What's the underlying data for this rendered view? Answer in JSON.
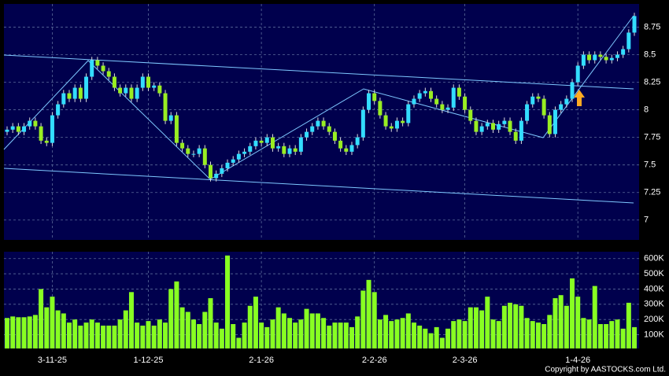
{
  "chart_data": [
    {
      "type": "candlestick",
      "up_color": "#33ddff",
      "down_color": "#99ee22",
      "open": [
        7.8,
        7.82,
        7.85,
        7.8,
        7.85,
        7.9,
        7.85,
        7.72,
        7.7,
        7.95,
        8.05,
        8.15,
        8.1,
        8.2,
        8.1,
        8.3,
        8.45,
        8.4,
        8.35,
        8.3,
        8.2,
        8.15,
        8.2,
        8.1,
        8.2,
        8.3,
        8.2,
        8.22,
        8.15,
        7.9,
        7.95,
        7.7,
        7.65,
        7.6,
        7.6,
        7.65,
        7.5,
        7.38,
        7.42,
        7.47,
        7.52,
        7.55,
        7.6,
        7.62,
        7.67,
        7.72,
        7.7,
        7.75,
        7.65,
        7.67,
        7.6,
        7.65,
        7.62,
        7.75,
        7.8,
        7.85,
        7.9,
        7.85,
        7.8,
        7.72,
        7.65,
        7.62,
        7.68,
        7.75,
        8.0,
        8.15,
        8.08,
        7.95,
        7.85,
        7.83,
        7.9,
        7.88,
        8.05,
        8.1,
        8.15,
        8.17,
        8.1,
        8.05,
        8.0,
        8.02,
        8.2,
        8.12,
        8.0,
        7.9,
        7.8,
        7.85,
        7.88,
        7.82,
        7.87,
        7.9,
        7.8,
        7.72,
        7.9,
        8.05,
        8.12,
        8.1,
        7.95,
        7.78,
        8.0,
        8.05,
        8.1,
        8.25,
        8.4,
        8.5,
        8.45,
        8.5,
        8.48,
        8.45,
        8.47,
        8.5,
        8.55,
        8.7
      ],
      "high": [
        7.85,
        7.88,
        7.88,
        7.88,
        7.93,
        7.93,
        7.88,
        7.75,
        7.98,
        8.08,
        8.18,
        8.18,
        8.23,
        8.23,
        8.33,
        8.48,
        8.48,
        8.43,
        8.38,
        8.33,
        8.23,
        8.23,
        8.23,
        8.23,
        8.33,
        8.33,
        8.25,
        8.25,
        8.18,
        7.98,
        7.98,
        7.73,
        7.68,
        7.63,
        7.68,
        7.68,
        7.53,
        7.45,
        7.5,
        7.55,
        7.58,
        7.63,
        7.65,
        7.7,
        7.75,
        7.75,
        7.78,
        7.78,
        7.7,
        7.7,
        7.68,
        7.68,
        7.78,
        7.83,
        7.88,
        7.93,
        7.93,
        7.88,
        7.83,
        7.75,
        7.68,
        7.71,
        7.78,
        8.03,
        8.18,
        8.18,
        8.11,
        7.98,
        7.88,
        7.93,
        7.93,
        8.08,
        8.13,
        8.18,
        8.2,
        8.2,
        8.13,
        8.08,
        8.05,
        8.23,
        8.23,
        8.15,
        8.03,
        7.93,
        7.88,
        7.91,
        7.91,
        7.9,
        7.93,
        7.93,
        7.83,
        7.93,
        8.08,
        8.15,
        8.15,
        8.13,
        7.98,
        8.03,
        8.08,
        8.13,
        8.28,
        8.43,
        8.53,
        8.53,
        8.53,
        8.53,
        8.51,
        8.5,
        8.53,
        8.58,
        8.73,
        8.88
      ],
      "low": [
        7.77,
        7.79,
        7.77,
        7.77,
        7.82,
        7.82,
        7.69,
        7.67,
        7.67,
        7.92,
        8.02,
        8.07,
        8.07,
        8.07,
        8.07,
        8.27,
        8.37,
        8.32,
        8.27,
        8.17,
        8.12,
        8.12,
        8.07,
        8.07,
        8.17,
        8.17,
        8.17,
        8.12,
        7.87,
        7.87,
        7.67,
        7.62,
        7.57,
        7.57,
        7.57,
        7.47,
        7.35,
        7.35,
        7.39,
        7.44,
        7.49,
        7.52,
        7.57,
        7.59,
        7.64,
        7.67,
        7.67,
        7.62,
        7.62,
        7.57,
        7.57,
        7.59,
        7.59,
        7.72,
        7.77,
        7.82,
        7.82,
        7.77,
        7.69,
        7.62,
        7.59,
        7.59,
        7.65,
        7.72,
        7.97,
        8.05,
        7.92,
        7.82,
        7.8,
        7.8,
        7.85,
        7.85,
        8.02,
        8.07,
        8.12,
        8.07,
        8.02,
        7.97,
        7.97,
        7.99,
        8.09,
        7.97,
        7.87,
        7.77,
        7.77,
        7.82,
        7.79,
        7.79,
        7.84,
        7.77,
        7.69,
        7.69,
        7.87,
        8.02,
        8.07,
        7.92,
        7.75,
        7.75,
        7.97,
        8.02,
        8.07,
        8.22,
        8.37,
        8.42,
        8.42,
        8.45,
        8.42,
        8.42,
        8.44,
        8.47,
        8.52,
        8.67
      ],
      "close": [
        7.82,
        7.85,
        7.8,
        7.85,
        7.9,
        7.85,
        7.72,
        7.7,
        7.95,
        8.05,
        8.15,
        8.1,
        8.2,
        8.1,
        8.3,
        8.45,
        8.4,
        8.35,
        8.3,
        8.2,
        8.15,
        8.2,
        8.1,
        8.2,
        8.3,
        8.2,
        8.22,
        8.15,
        7.9,
        7.95,
        7.7,
        7.65,
        7.6,
        7.6,
        7.65,
        7.5,
        7.38,
        7.42,
        7.47,
        7.52,
        7.55,
        7.6,
        7.62,
        7.67,
        7.72,
        7.7,
        7.75,
        7.65,
        7.67,
        7.6,
        7.65,
        7.62,
        7.75,
        7.8,
        7.85,
        7.9,
        7.85,
        7.8,
        7.72,
        7.65,
        7.62,
        7.68,
        7.75,
        8.0,
        8.15,
        8.08,
        7.95,
        7.85,
        7.83,
        7.9,
        7.88,
        8.05,
        8.1,
        8.15,
        8.17,
        8.1,
        8.05,
        8.0,
        8.02,
        8.2,
        8.12,
        8.0,
        7.9,
        7.8,
        7.85,
        7.88,
        7.82,
        7.87,
        7.9,
        7.8,
        7.72,
        7.9,
        8.05,
        8.12,
        8.1,
        7.95,
        7.78,
        8.0,
        8.05,
        8.1,
        8.25,
        8.4,
        8.5,
        8.45,
        8.5,
        8.48,
        8.45,
        8.47,
        8.5,
        8.55,
        8.7,
        8.85
      ],
      "ylim": [
        6.82,
        8.96
      ],
      "yticks": [
        7,
        7.25,
        7.5,
        7.75,
        8,
        8.25,
        8.5,
        8.75
      ],
      "grid": true
    },
    {
      "type": "bar",
      "color": "#88ff22",
      "categories": [
        null,
        null,
        null,
        null,
        null,
        null,
        null,
        null,
        "3-11-25",
        null,
        null,
        null,
        null,
        null,
        null,
        null,
        null,
        null,
        null,
        null,
        null,
        null,
        null,
        null,
        null,
        "1-12-25",
        null,
        null,
        null,
        null,
        null,
        null,
        null,
        null,
        null,
        null,
        null,
        null,
        null,
        null,
        null,
        null,
        null,
        null,
        null,
        "2-1-26",
        null,
        null,
        null,
        null,
        null,
        null,
        null,
        null,
        null,
        null,
        null,
        null,
        null,
        null,
        null,
        null,
        null,
        null,
        null,
        "2-2-26",
        null,
        null,
        null,
        null,
        null,
        null,
        null,
        null,
        null,
        null,
        null,
        null,
        null,
        null,
        null,
        "2-3-26",
        null,
        null,
        null,
        null,
        null,
        null,
        null,
        null,
        null,
        null,
        null,
        null,
        null,
        null,
        null,
        null,
        null,
        null,
        null,
        "1-4-26",
        null,
        null,
        null,
        null,
        null,
        null,
        null,
        null,
        null,
        null
      ],
      "values": [
        210000,
        220000,
        215000,
        215000,
        220000,
        230000,
        400000,
        280000,
        350000,
        260000,
        240000,
        180000,
        200000,
        160000,
        180000,
        200000,
        180000,
        160000,
        160000,
        160000,
        200000,
        260000,
        380000,
        180000,
        160000,
        190000,
        160000,
        200000,
        180000,
        400000,
        450000,
        280000,
        250000,
        200000,
        170000,
        250000,
        340000,
        180000,
        140000,
        620000,
        170000,
        80000,
        180000,
        290000,
        350000,
        180000,
        150000,
        200000,
        280000,
        240000,
        210000,
        180000,
        200000,
        270000,
        240000,
        240000,
        210000,
        160000,
        180000,
        180000,
        180000,
        150000,
        220000,
        390000,
        460000,
        380000,
        200000,
        230000,
        190000,
        200000,
        210000,
        240000,
        180000,
        160000,
        140000,
        110000,
        150000,
        80000,
        140000,
        190000,
        200000,
        190000,
        280000,
        280000,
        260000,
        350000,
        200000,
        190000,
        290000,
        310000,
        300000,
        290000,
        210000,
        190000,
        180000,
        170000,
        230000,
        340000,
        360000,
        290000,
        470000,
        350000,
        210000,
        200000,
        420000,
        170000,
        170000,
        190000,
        200000,
        140000,
        310000,
        150000
      ],
      "ylim": [
        10000,
        645000
      ],
      "yticks": [
        {
          "value": 100000,
          "label": "100K"
        },
        {
          "value": 200000,
          "label": "200K"
        },
        {
          "value": 300000,
          "label": "300K"
        },
        {
          "value": 400000,
          "label": "400K"
        },
        {
          "value": 500000,
          "label": "500K"
        },
        {
          "value": 600000,
          "label": "600K"
        }
      ],
      "grid": true
    }
  ],
  "copyright": "Copyright by AASTOCKS.com Ltd."
}
